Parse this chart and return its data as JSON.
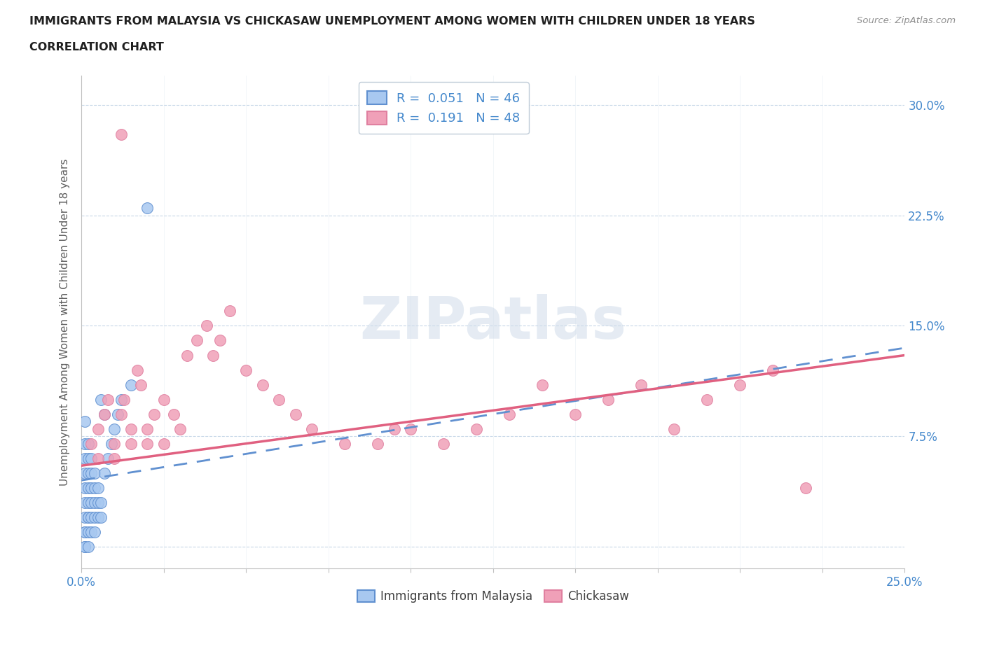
{
  "title_line1": "IMMIGRANTS FROM MALAYSIA VS CHICKASAW UNEMPLOYMENT AMONG WOMEN WITH CHILDREN UNDER 18 YEARS",
  "title_line2": "CORRELATION CHART",
  "source": "Source: ZipAtlas.com",
  "ylabel": "Unemployment Among Women with Children Under 18 years",
  "xlim": [
    0.0,
    0.25
  ],
  "ylim": [
    -0.015,
    0.32
  ],
  "r_malaysia": 0.051,
  "r_chickasaw": 0.191,
  "n_malaysia": 46,
  "n_chickasaw": 48,
  "watermark": "ZIPatlas",
  "color_malaysia": "#a8c8f0",
  "color_chickasaw": "#f0a0b8",
  "color_malaysia_line": "#6090d0",
  "color_chickasaw_line": "#e06080",
  "color_text_blue": "#4488cc",
  "background_color": "#ffffff",
  "grid_color": "#c8d8e8",
  "malaysia_line_start_y": 0.045,
  "malaysia_line_end_y": 0.135,
  "chickasaw_line_start_y": 0.055,
  "chickasaw_line_end_y": 0.13,
  "malaysia_scatter": {
    "x": [
      0.001,
      0.001,
      0.001,
      0.001,
      0.001,
      0.001,
      0.001,
      0.001,
      0.001,
      0.001,
      0.002,
      0.002,
      0.002,
      0.002,
      0.002,
      0.002,
      0.002,
      0.002,
      0.002,
      0.003,
      0.003,
      0.003,
      0.003,
      0.003,
      0.003,
      0.004,
      0.004,
      0.004,
      0.004,
      0.004,
      0.005,
      0.005,
      0.005,
      0.006,
      0.006,
      0.006,
      0.007,
      0.007,
      0.008,
      0.009,
      0.01,
      0.011,
      0.012,
      0.015,
      0.02,
      0.001
    ],
    "y": [
      0.0,
      0.01,
      0.02,
      0.03,
      0.04,
      0.05,
      0.06,
      0.07,
      0.0,
      0.01,
      0.0,
      0.01,
      0.02,
      0.03,
      0.04,
      0.05,
      0.06,
      0.07,
      0.02,
      0.01,
      0.02,
      0.03,
      0.04,
      0.05,
      0.06,
      0.01,
      0.02,
      0.03,
      0.04,
      0.05,
      0.02,
      0.03,
      0.04,
      0.02,
      0.03,
      0.1,
      0.05,
      0.09,
      0.06,
      0.07,
      0.08,
      0.09,
      0.1,
      0.11,
      0.23,
      0.085
    ]
  },
  "chickasaw_scatter": {
    "x": [
      0.003,
      0.005,
      0.005,
      0.007,
      0.008,
      0.01,
      0.01,
      0.012,
      0.013,
      0.015,
      0.015,
      0.017,
      0.018,
      0.02,
      0.02,
      0.022,
      0.025,
      0.025,
      0.028,
      0.03,
      0.032,
      0.035,
      0.038,
      0.04,
      0.042,
      0.045,
      0.05,
      0.055,
      0.06,
      0.065,
      0.07,
      0.08,
      0.09,
      0.095,
      0.1,
      0.11,
      0.12,
      0.13,
      0.14,
      0.15,
      0.16,
      0.17,
      0.18,
      0.19,
      0.2,
      0.21,
      0.22,
      0.012
    ],
    "y": [
      0.07,
      0.08,
      0.06,
      0.09,
      0.1,
      0.07,
      0.06,
      0.09,
      0.1,
      0.08,
      0.07,
      0.12,
      0.11,
      0.08,
      0.07,
      0.09,
      0.1,
      0.07,
      0.09,
      0.08,
      0.13,
      0.14,
      0.15,
      0.13,
      0.14,
      0.16,
      0.12,
      0.11,
      0.1,
      0.09,
      0.08,
      0.07,
      0.07,
      0.08,
      0.08,
      0.07,
      0.08,
      0.09,
      0.11,
      0.09,
      0.1,
      0.11,
      0.08,
      0.1,
      0.11,
      0.12,
      0.04,
      0.28
    ]
  }
}
